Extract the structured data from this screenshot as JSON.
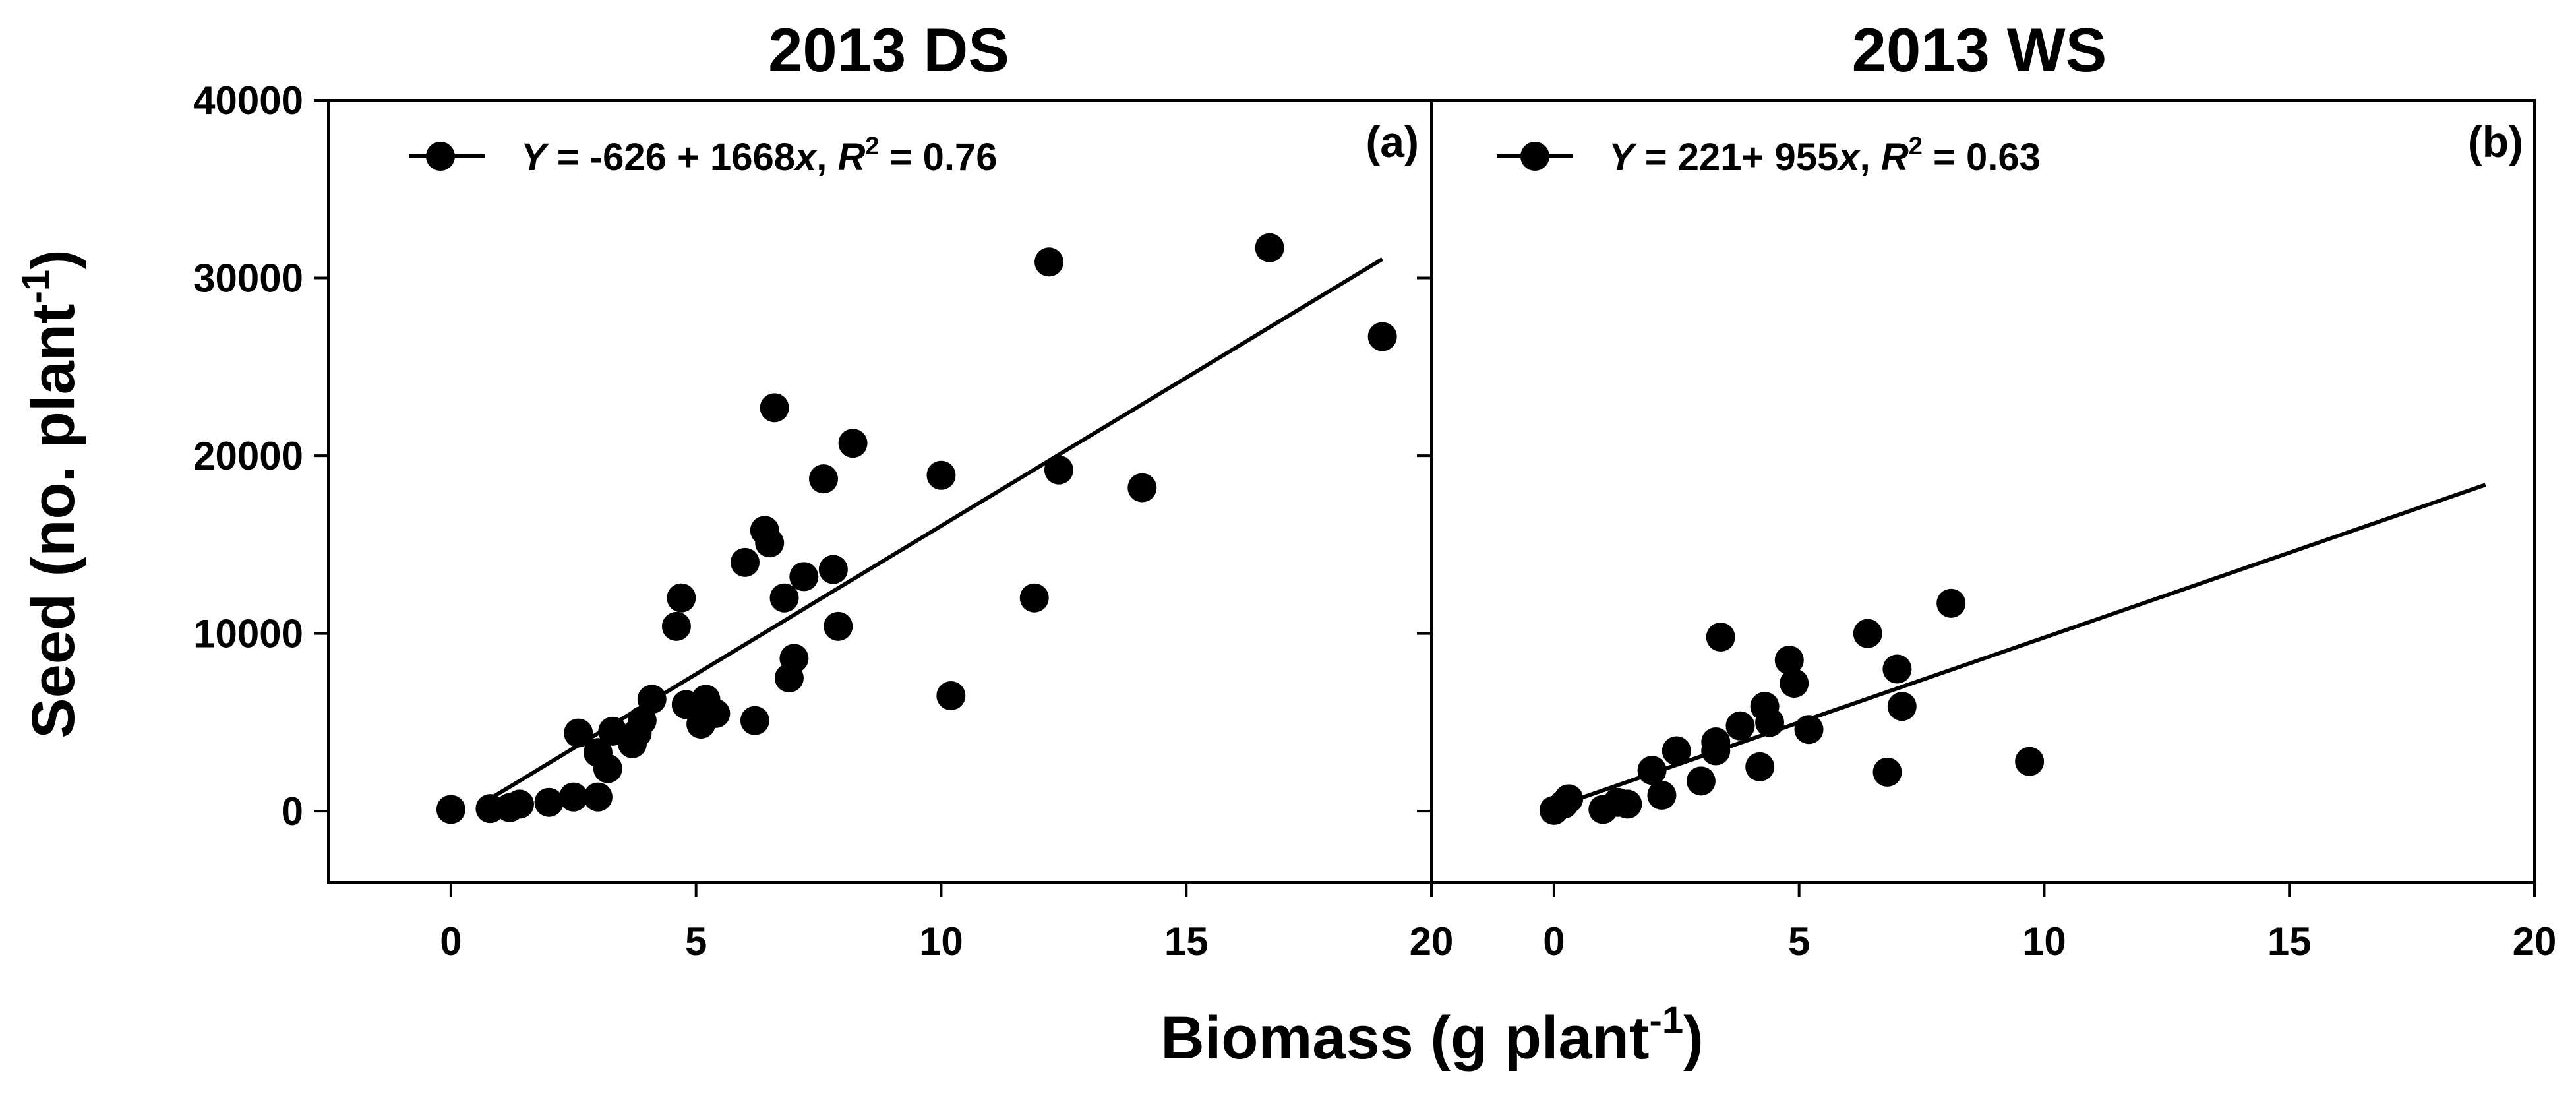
{
  "figure": {
    "ylabel_main": "Seed (no. plant",
    "ylabel_sup": "-1",
    "ylabel_end": ")",
    "xlabel_main": "Biomass (g plant",
    "xlabel_sup": "-1",
    "xlabel_end": ")"
  },
  "chart_data": [
    {
      "type": "scatter",
      "title": "2013 DS",
      "panel_label": "(a)",
      "legend": {
        "y_italic": "Y",
        "eq_part1": " = -626 + 1668",
        "x_italic": "x",
        "eq_part2": ", ",
        "r_italic": "R",
        "r_sup": "2",
        "eq_part3": " = 0.76"
      },
      "xlabel": "Biomass (g plant-1)",
      "ylabel": "Seed (no. plant-1)",
      "xlim": [
        -2.5,
        20
      ],
      "ylim": [
        -4000,
        40000
      ],
      "xticks": [
        "0",
        "5",
        "10",
        "15",
        "20"
      ],
      "yticks": [
        "0",
        "10000",
        "20000",
        "30000",
        "40000"
      ],
      "fit": {
        "intercept": -626,
        "slope": 1668,
        "x_range": [
          0.78,
          19.0
        ]
      },
      "points": [
        [
          0.0,
          100
        ],
        [
          0.8,
          150
        ],
        [
          1.2,
          200
        ],
        [
          1.4,
          400
        ],
        [
          2.0,
          500
        ],
        [
          2.5,
          800
        ],
        [
          2.6,
          4400
        ],
        [
          3.0,
          800
        ],
        [
          3.0,
          3300
        ],
        [
          3.2,
          2400
        ],
        [
          3.3,
          4500
        ],
        [
          3.7,
          3800
        ],
        [
          3.8,
          4400
        ],
        [
          3.9,
          5100
        ],
        [
          4.1,
          6300
        ],
        [
          4.6,
          10400
        ],
        [
          4.7,
          12000
        ],
        [
          4.8,
          6000
        ],
        [
          5.1,
          4900
        ],
        [
          5.2,
          6300
        ],
        [
          5.4,
          5500
        ],
        [
          6.0,
          14000
        ],
        [
          6.2,
          5100
        ],
        [
          6.4,
          15800
        ],
        [
          6.5,
          15100
        ],
        [
          6.6,
          22700
        ],
        [
          6.8,
          12000
        ],
        [
          6.9,
          7500
        ],
        [
          7.0,
          8600
        ],
        [
          7.2,
          13200
        ],
        [
          7.6,
          18700
        ],
        [
          7.8,
          13600
        ],
        [
          7.9,
          10400
        ],
        [
          8.2,
          20700
        ],
        [
          10.0,
          18900
        ],
        [
          10.2,
          6500
        ],
        [
          11.9,
          12000
        ],
        [
          12.2,
          30900
        ],
        [
          12.4,
          19200
        ],
        [
          14.1,
          18200
        ],
        [
          16.7,
          31700
        ],
        [
          19.0,
          26700
        ]
      ]
    },
    {
      "type": "scatter",
      "title": "2013 WS",
      "panel_label": "(b)",
      "legend": {
        "y_italic": "Y",
        "eq_part1": " = 221+ 955",
        "x_italic": "x",
        "eq_part2": ", ",
        "r_italic": "R",
        "r_sup": "2",
        "eq_part3": " = 0.63"
      },
      "xlabel": "Biomass (g plant-1)",
      "ylabel": "Seed (no. plant-1)",
      "xlim": [
        -2.5,
        20
      ],
      "ylim": [
        -4000,
        40000
      ],
      "xticks": [
        "0",
        "5",
        "10",
        "15",
        "20"
      ],
      "yticks": [
        "0",
        "10000",
        "20000",
        "30000",
        "40000"
      ],
      "fit": {
        "intercept": 221,
        "slope": 955,
        "x_range": [
          0.0,
          19.0
        ]
      },
      "points": [
        [
          0.0,
          50
        ],
        [
          0.2,
          400
        ],
        [
          0.3,
          700
        ],
        [
          1.0,
          100
        ],
        [
          1.3,
          500
        ],
        [
          1.5,
          400
        ],
        [
          2.0,
          2300
        ],
        [
          2.2,
          900
        ],
        [
          2.5,
          3400
        ],
        [
          3.0,
          1700
        ],
        [
          3.3,
          3400
        ],
        [
          3.3,
          3900
        ],
        [
          3.4,
          9800
        ],
        [
          3.8,
          4800
        ],
        [
          4.2,
          2500
        ],
        [
          4.3,
          5900
        ],
        [
          4.4,
          5000
        ],
        [
          4.8,
          8500
        ],
        [
          4.9,
          7200
        ],
        [
          5.2,
          4600
        ],
        [
          6.4,
          10000
        ],
        [
          6.8,
          2200
        ],
        [
          7.0,
          8000
        ],
        [
          7.1,
          5900
        ],
        [
          8.1,
          11700
        ],
        [
          9.7,
          2800
        ]
      ]
    }
  ]
}
